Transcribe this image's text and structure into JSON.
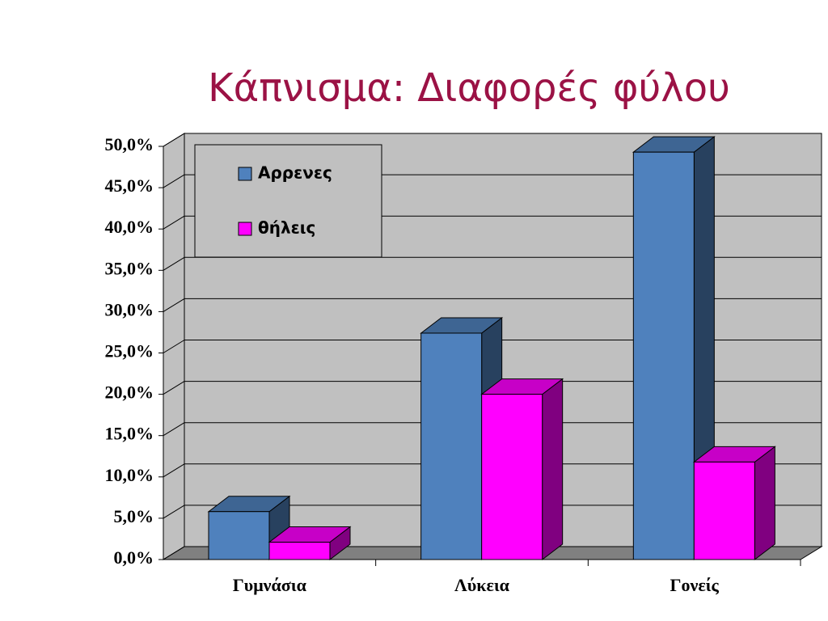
{
  "chart_data": {
    "type": "bar3d",
    "title": "Κάπνισμα: Διαφορές φύλου",
    "categories": [
      "Γυμνάσια",
      "Λύκεια",
      "Γονείς"
    ],
    "series": [
      {
        "name": "Αρρενες",
        "color": "#4f81bd",
        "values": [
          5.8,
          27.4,
          49.3
        ]
      },
      {
        "name": "θήλεις",
        "color": "#ff00ff",
        "values": [
          2.1,
          20.0,
          11.8
        ]
      }
    ],
    "ylim": [
      0,
      50
    ],
    "yticks": [
      {
        "value": 0,
        "label": "0,0%"
      },
      {
        "value": 5,
        "label": "5,0%"
      },
      {
        "value": 10,
        "label": "10,0%"
      },
      {
        "value": 15,
        "label": "15,0%"
      },
      {
        "value": 20,
        "label": "20,0%"
      },
      {
        "value": 25,
        "label": "25,0%"
      },
      {
        "value": 30,
        "label": "30,0%"
      },
      {
        "value": 35,
        "label": "35,0%"
      },
      {
        "value": 40,
        "label": "40,0%"
      },
      {
        "value": 45,
        "label": "45,0%"
      },
      {
        "value": 50,
        "label": "50,0%"
      }
    ],
    "grid": true,
    "legend": "upper left"
  }
}
